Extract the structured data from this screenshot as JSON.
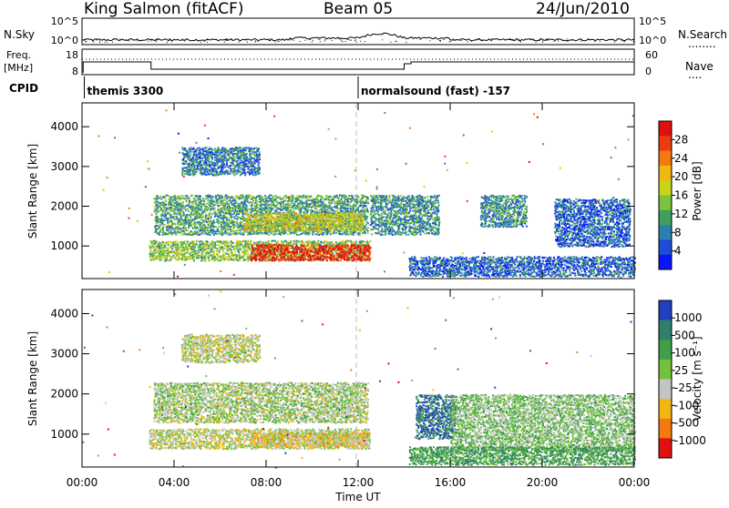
{
  "header": {
    "station": "King Salmon (fitACF)",
    "beam": "Beam 05",
    "date": "24/Jun/2010"
  },
  "nsky_panel": {
    "left_label": "N.Sky",
    "right_label": "N.Search",
    "right_legend": "........",
    "left_ticks": [
      "10^5",
      "10^0"
    ],
    "right_ticks": [
      "10^5",
      "10^0"
    ]
  },
  "freq_panel": {
    "left_label_1": "Freq.",
    "left_label_2": "[MHz]",
    "right_label": "Nave",
    "right_legend": "....",
    "left_ticks": [
      "18",
      "8"
    ],
    "right_ticks": [
      "60",
      "0"
    ]
  },
  "cpid": {
    "label": "CPID",
    "segments": [
      {
        "name": "themis 3300",
        "start_hour": 0.1
      },
      {
        "name": "normalsound (fast) -157",
        "start_hour": 12.0
      }
    ]
  },
  "chart_data": [
    {
      "type": "heatmap",
      "name": "power",
      "xlabel": "",
      "ylabel": "Slant Range [km]",
      "xlim": [
        0,
        24
      ],
      "ylim": [
        180,
        4600
      ],
      "yticks": [
        "1000",
        "2000",
        "3000",
        "4000"
      ],
      "colorbar_label": "Power [dB]",
      "colorbar_ticks": [
        "4",
        "8",
        "12",
        "16",
        "20",
        "24",
        "28"
      ],
      "colorbar_range": [
        0,
        32
      ],
      "colors": [
        "#0a14ff",
        "#1f4bd6",
        "#2d7fb0",
        "#3fa05e",
        "#7cc23a",
        "#c8d419",
        "#f2b712",
        "#f47a10",
        "#ee3a10",
        "#e01010"
      ],
      "regions": [
        {
          "x0": 3.1,
          "x1": 12.4,
          "r0": 1300,
          "r1": 2300,
          "level": 0.35
        },
        {
          "x0": 7.0,
          "x1": 12.2,
          "r0": 1400,
          "r1": 1850,
          "level": 0.55
        },
        {
          "x0": 2.9,
          "x1": 12.5,
          "r0": 650,
          "r1": 1150,
          "level": 0.45
        },
        {
          "x0": 7.3,
          "x1": 12.5,
          "r0": 650,
          "r1": 1050,
          "level": 0.92
        },
        {
          "x0": 4.3,
          "x1": 7.7,
          "r0": 2800,
          "r1": 3500,
          "level": 0.25
        },
        {
          "x0": 12.5,
          "x1": 15.5,
          "r0": 1300,
          "r1": 2300,
          "level": 0.3
        },
        {
          "x0": 17.3,
          "x1": 19.3,
          "r0": 1500,
          "r1": 2300,
          "level": 0.3
        },
        {
          "x0": 14.2,
          "x1": 24.0,
          "r0": 250,
          "r1": 750,
          "level": 0.2
        },
        {
          "x0": 20.5,
          "x1": 23.8,
          "r0": 1000,
          "r1": 2200,
          "level": 0.2
        }
      ]
    },
    {
      "type": "heatmap",
      "name": "velocity",
      "xlabel": "Time UT",
      "ylabel": "Slant Range [km]",
      "xlim": [
        0,
        24
      ],
      "ylim": [
        180,
        4600
      ],
      "xticks": [
        "00:00",
        "04:00",
        "08:00",
        "12:00",
        "16:00",
        "20:00",
        "00:00"
      ],
      "yticks": [
        "1000",
        "2000",
        "3000",
        "4000"
      ],
      "colorbar_label": "Velocity [m s⁻¹]",
      "colorbar_ticks": [
        "1000",
        "500",
        "100",
        "25",
        "-25",
        "-100",
        "-500",
        "-1000"
      ],
      "colors": [
        "#2040c0",
        "#2f7f6a",
        "#3fa04a",
        "#72c23a",
        "#c4c4c4",
        "#f2b712",
        "#f47a10",
        "#e01010"
      ],
      "regions": [
        {
          "x0": 3.1,
          "x1": 12.4,
          "r0": 1300,
          "r1": 2300,
          "level": 0.5
        },
        {
          "x0": 2.9,
          "x1": 12.5,
          "r0": 650,
          "r1": 1150,
          "level": 0.55
        },
        {
          "x0": 7.3,
          "x1": 12.5,
          "r0": 700,
          "r1": 1050,
          "level": 0.62
        },
        {
          "x0": 4.3,
          "x1": 7.7,
          "r0": 2800,
          "r1": 3500,
          "level": 0.55
        },
        {
          "x0": 14.5,
          "x1": 16.2,
          "r0": 900,
          "r1": 2000,
          "level": 0.15
        },
        {
          "x0": 16.0,
          "x1": 24.0,
          "r0": 600,
          "r1": 2000,
          "level": 0.45
        },
        {
          "x0": 14.2,
          "x1": 24.0,
          "r0": 250,
          "r1": 700,
          "level": 0.3
        }
      ]
    }
  ]
}
